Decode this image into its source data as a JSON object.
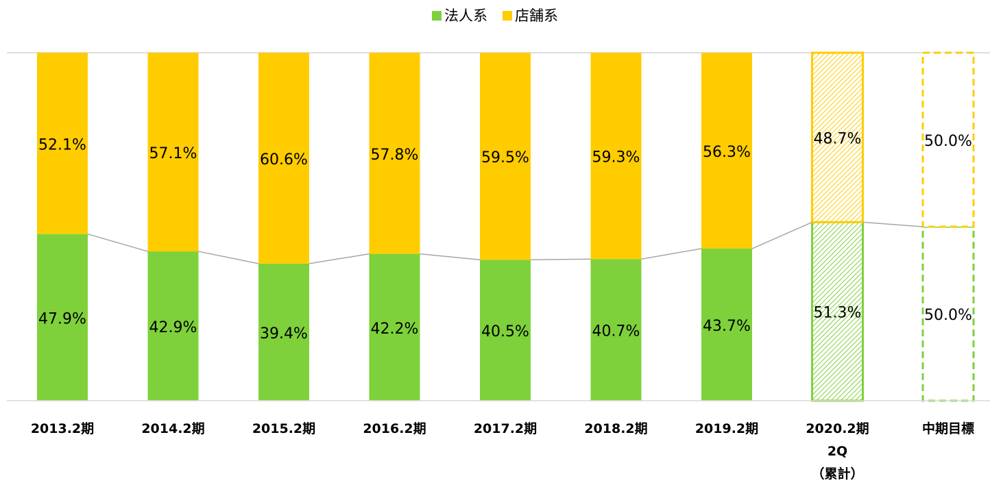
{
  "chart_data": {
    "type": "bar",
    "stacked": true,
    "categories": [
      "2013.2期",
      "2014.2期",
      "2015.2期",
      "2016.2期",
      "2017.2期",
      "2018.2期",
      "2019.2期",
      "2020.2期\n2Q\n（累計）",
      "中期目標"
    ],
    "series": [
      {
        "name": "法人系",
        "color": "#7ed13b",
        "values": [
          47.9,
          42.9,
          39.4,
          42.2,
          40.5,
          40.7,
          43.7,
          51.3,
          50.0
        ],
        "value_labels": [
          "47.9%",
          "42.9%",
          "39.4%",
          "42.2%",
          "40.5%",
          "40.7%",
          "43.7%",
          "51.3%",
          "50.0%"
        ]
      },
      {
        "name": "店舗系",
        "color": "#ffcc00",
        "values": [
          52.1,
          57.1,
          60.6,
          57.8,
          59.5,
          59.3,
          56.3,
          48.7,
          50.0
        ],
        "value_labels": [
          "52.1%",
          "57.1%",
          "60.6%",
          "57.8%",
          "59.5%",
          "59.3%",
          "56.3%",
          "48.7%",
          "50.0%"
        ]
      }
    ],
    "bar_styles": [
      "solid",
      "solid",
      "solid",
      "solid",
      "solid",
      "solid",
      "solid",
      "hatched",
      "dashed"
    ],
    "ylim": [
      0,
      100
    ],
    "legend": "top"
  }
}
